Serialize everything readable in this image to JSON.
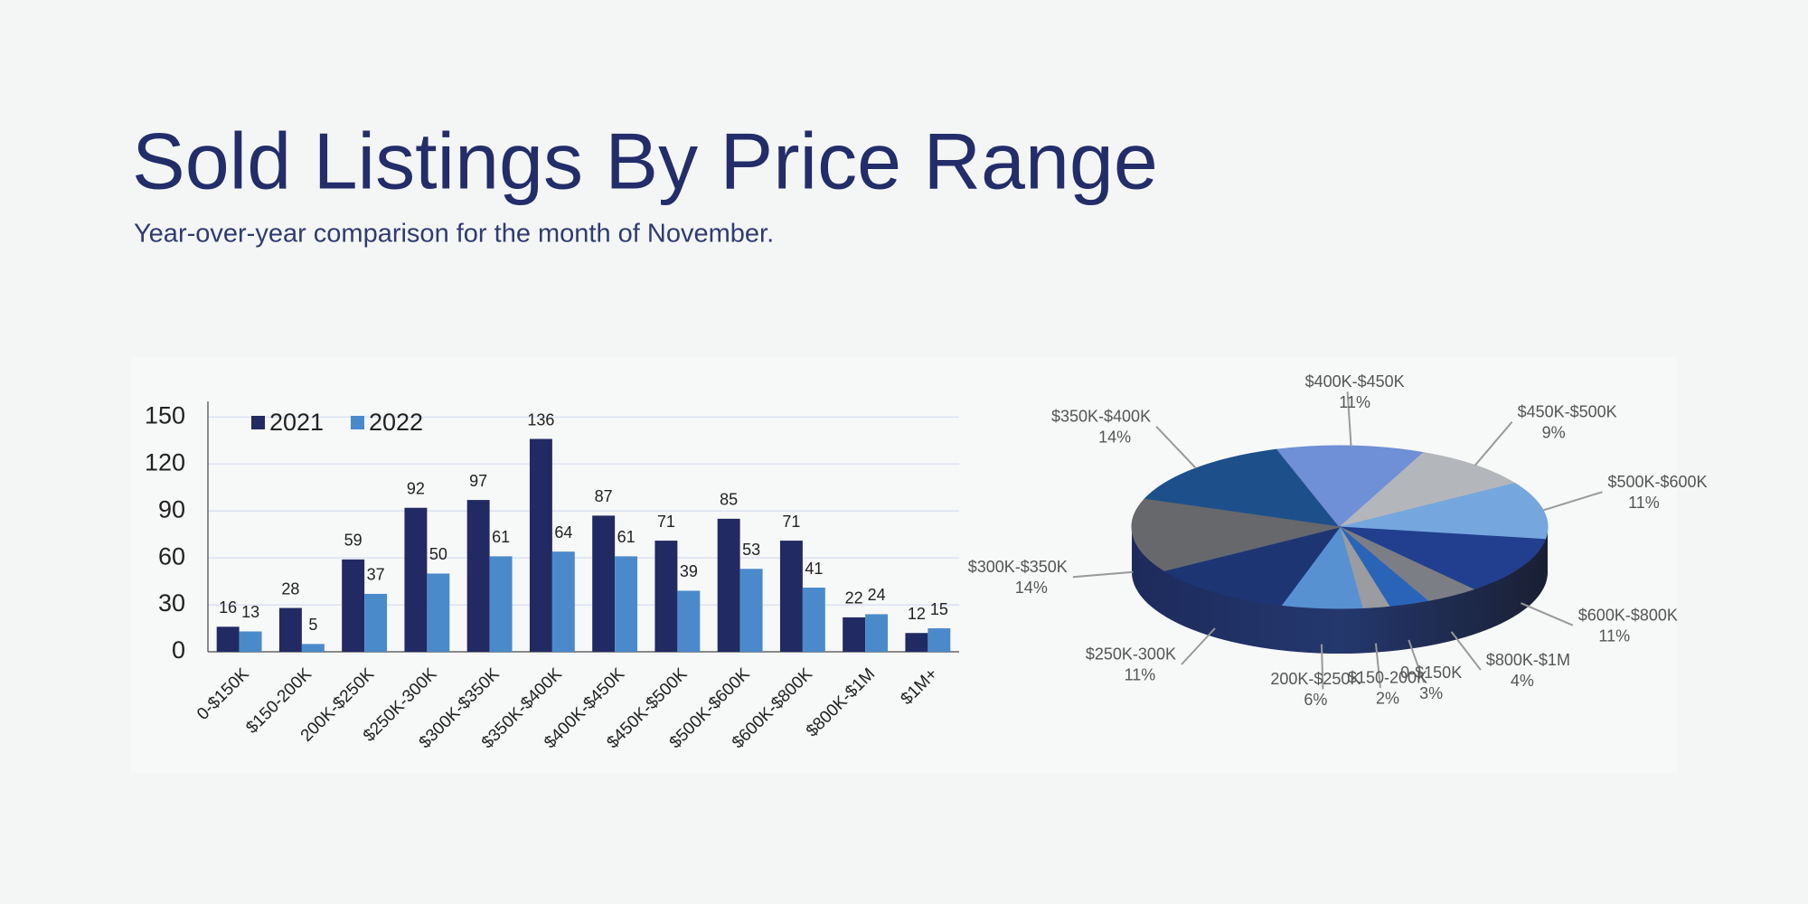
{
  "title": "Sold Listings By Price Range",
  "subtitle": "Year-over-year comparison for the month of November.",
  "chart_data": [
    {
      "type": "bar",
      "categories": [
        "0-$150K",
        "$150-200K",
        "200K-$250K",
        "$250K-300K",
        "$300K-$350K",
        "$350K-$400K",
        "$400K-$450K",
        "$450K-$500K",
        "$500K-$600K",
        "$600K-$800K",
        "$800K-$1M",
        "$1M+"
      ],
      "series": [
        {
          "name": "2021",
          "color": "#222a63",
          "values": [
            16,
            28,
            59,
            92,
            97,
            136,
            87,
            71,
            85,
            71,
            22,
            12
          ]
        },
        {
          "name": "2022",
          "color": "#4a8acb",
          "values": [
            13,
            5,
            37,
            50,
            61,
            64,
            61,
            39,
            53,
            41,
            24,
            15
          ]
        }
      ],
      "ylim": [
        0,
        160
      ],
      "yticks": [
        0,
        30,
        60,
        90,
        120,
        150
      ],
      "grid": true,
      "legend": "top-left"
    },
    {
      "type": "pie",
      "categories": [
        "$350K-$400K",
        "$400K-$450K",
        "$450K-$500K",
        "$500K-$600K",
        "$600K-$800K",
        "$800K-$1M",
        "0-$150K",
        "$150-200K",
        "200K-$250K",
        "$250K-300K",
        "$300K-$350K"
      ],
      "values": [
        14,
        11,
        9,
        11,
        11,
        4,
        3,
        2,
        6,
        11,
        14
      ],
      "value_labels": [
        "14%",
        "11%",
        "9%",
        "11%",
        "11%",
        "4%",
        "3%",
        "2%",
        "6%",
        "11%",
        "14%"
      ],
      "colors": [
        "#1d4f8a",
        "#6f8fd6",
        "#b3b6bb",
        "#76a6de",
        "#223f8f",
        "#7b7e84",
        "#2a64b8",
        "#9a9ca0",
        "#5891d2",
        "#1e3574",
        "#66686c"
      ]
    }
  ]
}
